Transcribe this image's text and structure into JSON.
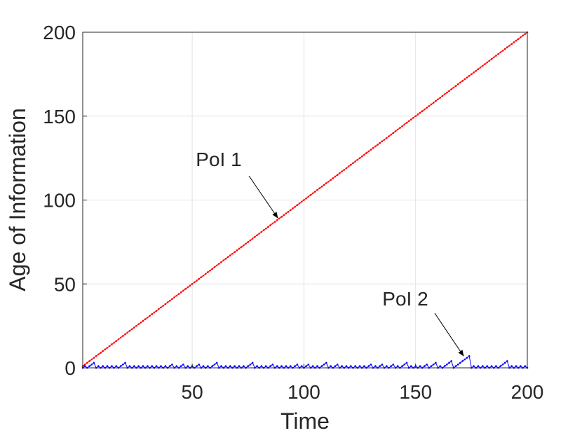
{
  "chart_data": {
    "type": "line",
    "xlabel": "Time",
    "ylabel": "Age of Information",
    "xlim": [
      1,
      200
    ],
    "ylim": [
      0,
      200
    ],
    "xticks": [
      50,
      100,
      150,
      200
    ],
    "yticks": [
      0,
      50,
      100,
      150,
      200
    ],
    "grid": true,
    "annotations": [
      "PoI 1",
      "PoI 2"
    ],
    "x": [
      1,
      2,
      3,
      4,
      5,
      6,
      7,
      8,
      9,
      10,
      11,
      12,
      13,
      14,
      15,
      16,
      17,
      18,
      19,
      20,
      21,
      22,
      23,
      24,
      25,
      26,
      27,
      28,
      29,
      30,
      31,
      32,
      33,
      34,
      35,
      36,
      37,
      38,
      39,
      40,
      41,
      42,
      43,
      44,
      45,
      46,
      47,
      48,
      49,
      50,
      51,
      52,
      53,
      54,
      55,
      56,
      57,
      58,
      59,
      60,
      61,
      62,
      63,
      64,
      65,
      66,
      67,
      68,
      69,
      70,
      71,
      72,
      73,
      74,
      75,
      76,
      77,
      78,
      79,
      80,
      81,
      82,
      83,
      84,
      85,
      86,
      87,
      88,
      89,
      90,
      91,
      92,
      93,
      94,
      95,
      96,
      97,
      98,
      99,
      100,
      101,
      102,
      103,
      104,
      105,
      106,
      107,
      108,
      109,
      110,
      111,
      112,
      113,
      114,
      115,
      116,
      117,
      118,
      119,
      120,
      121,
      122,
      123,
      124,
      125,
      126,
      127,
      128,
      129,
      130,
      131,
      132,
      133,
      134,
      135,
      136,
      137,
      138,
      139,
      140,
      141,
      142,
      143,
      144,
      145,
      146,
      147,
      148,
      149,
      150,
      151,
      152,
      153,
      154,
      155,
      156,
      157,
      158,
      159,
      160,
      161,
      162,
      163,
      164,
      165,
      166,
      167,
      168,
      169,
      170,
      171,
      172,
      173,
      174,
      175,
      176,
      177,
      178,
      179,
      180,
      181,
      182,
      183,
      184,
      185,
      186,
      187,
      188,
      189,
      190,
      191,
      192,
      193,
      194,
      195,
      196,
      197,
      198,
      199,
      200
    ],
    "series": [
      {
        "color": "#ff0000",
        "values": [
          1,
          2,
          3,
          4,
          5,
          6,
          7,
          8,
          9,
          10,
          11,
          12,
          13,
          14,
          15,
          16,
          17,
          18,
          19,
          20,
          21,
          22,
          23,
          24,
          25,
          26,
          27,
          28,
          29,
          30,
          31,
          32,
          33,
          34,
          35,
          36,
          37,
          38,
          39,
          40,
          41,
          42,
          43,
          44,
          45,
          46,
          47,
          48,
          49,
          50,
          51,
          52,
          53,
          54,
          55,
          56,
          57,
          58,
          59,
          60,
          61,
          62,
          63,
          64,
          65,
          66,
          67,
          68,
          69,
          70,
          71,
          72,
          73,
          74,
          75,
          76,
          77,
          78,
          79,
          80,
          81,
          82,
          83,
          84,
          85,
          86,
          87,
          88,
          89,
          90,
          91,
          92,
          93,
          94,
          95,
          96,
          97,
          98,
          99,
          100,
          101,
          102,
          103,
          104,
          105,
          106,
          107,
          108,
          109,
          110,
          111,
          112,
          113,
          114,
          115,
          116,
          117,
          118,
          119,
          120,
          121,
          122,
          123,
          124,
          125,
          126,
          127,
          128,
          129,
          130,
          131,
          132,
          133,
          134,
          135,
          136,
          137,
          138,
          139,
          140,
          141,
          142,
          143,
          144,
          145,
          146,
          147,
          148,
          149,
          150,
          151,
          152,
          153,
          154,
          155,
          156,
          157,
          158,
          159,
          160,
          161,
          162,
          163,
          164,
          165,
          166,
          167,
          168,
          169,
          170,
          171,
          172,
          173,
          174,
          175,
          176,
          177,
          178,
          179,
          180,
          181,
          182,
          183,
          184,
          185,
          186,
          187,
          188,
          189,
          190,
          191,
          192,
          193,
          194,
          195,
          196,
          197,
          198,
          199,
          200
        ]
      },
      {
        "color": "#0000ff",
        "values": [
          0,
          1,
          0,
          1,
          2,
          3,
          0,
          1,
          0,
          1,
          0,
          1,
          0,
          1,
          0,
          1,
          0,
          1,
          2,
          3,
          0,
          1,
          0,
          1,
          0,
          1,
          0,
          1,
          0,
          1,
          0,
          1,
          0,
          1,
          0,
          1,
          0,
          1,
          0,
          1,
          2,
          0,
          1,
          0,
          1,
          2,
          0,
          1,
          0,
          1,
          0,
          1,
          2,
          0,
          1,
          0,
          1,
          0,
          1,
          2,
          3,
          0,
          1,
          0,
          1,
          0,
          1,
          0,
          1,
          0,
          1,
          0,
          1,
          0,
          1,
          2,
          3,
          0,
          1,
          0,
          1,
          0,
          1,
          0,
          1,
          2,
          0,
          1,
          0,
          1,
          0,
          1,
          0,
          1,
          0,
          1,
          2,
          0,
          1,
          0,
          1,
          2,
          0,
          1,
          0,
          1,
          0,
          1,
          2,
          3,
          0,
          1,
          0,
          1,
          2,
          0,
          1,
          0,
          1,
          0,
          1,
          0,
          1,
          0,
          1,
          0,
          1,
          0,
          1,
          2,
          0,
          1,
          0,
          1,
          2,
          0,
          1,
          0,
          1,
          2,
          0,
          1,
          0,
          1,
          2,
          3,
          0,
          1,
          0,
          1,
          0,
          1,
          0,
          1,
          2,
          0,
          1,
          2,
          3,
          0,
          1,
          0,
          1,
          2,
          3,
          4,
          0,
          1,
          2,
          3,
          4,
          5,
          6,
          7,
          0,
          1,
          0,
          1,
          0,
          1,
          0,
          1,
          0,
          1,
          0,
          1,
          0,
          1,
          2,
          3,
          4,
          0,
          1,
          0,
          1,
          0,
          1,
          0,
          1,
          0
        ]
      }
    ]
  }
}
